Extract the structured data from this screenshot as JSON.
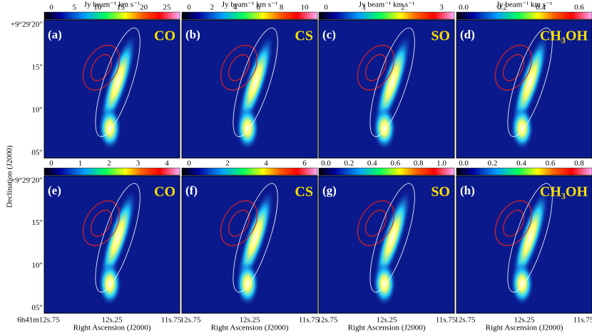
{
  "colorbar_unit": "Jy beam⁻¹ km s⁻¹",
  "x_axis": {
    "label": "Right Ascension (J2000)",
    "columns": [
      [
        "6h41m12s.75",
        "12s.25",
        "11s.75"
      ],
      [
        "12s.75",
        "12s.25",
        "11s.75"
      ],
      [
        "12s.75",
        "12s.25",
        "11s.75"
      ],
      [
        "12s.75",
        "12s.25",
        "11s.75"
      ]
    ]
  },
  "y_axis": {
    "label": "Declination (J2000)",
    "rows": [
      [
        "+9°29′20″",
        "15″",
        "10″",
        "05″"
      ],
      [
        "+9°29′20″",
        "15″",
        "10″",
        "05″"
      ]
    ]
  },
  "panels": [
    {
      "label": "(a)",
      "molecule": "CO",
      "ticks": [
        "0",
        "5",
        "10",
        "15",
        "20",
        "25"
      ]
    },
    {
      "label": "(b)",
      "molecule": "CS",
      "ticks": [
        "0",
        "2",
        "4",
        "6",
        "8",
        "10"
      ]
    },
    {
      "label": "(c)",
      "molecule": "SO",
      "ticks": [
        "0",
        "1",
        "2",
        "3"
      ]
    },
    {
      "label": "(d)",
      "molecule": "CH₃OH",
      "ticks": [
        "0.0",
        "0.2",
        "0.4",
        "0.6"
      ]
    },
    {
      "label": "(e)",
      "molecule": "CO",
      "ticks": [
        "0",
        "1",
        "2",
        "3",
        "4"
      ]
    },
    {
      "label": "(f)",
      "molecule": "CS",
      "ticks": [
        "0",
        "2",
        "4",
        "6"
      ]
    },
    {
      "label": "(g)",
      "molecule": "SO",
      "ticks": [
        "0.0",
        "0.2",
        "0.4",
        "0.6",
        "0.8",
        "1.0"
      ]
    },
    {
      "label": "(h)",
      "molecule": "CH₃OH",
      "ticks": [
        "0.0",
        "0.2",
        "0.4",
        "0.6",
        "0.8"
      ]
    }
  ]
}
